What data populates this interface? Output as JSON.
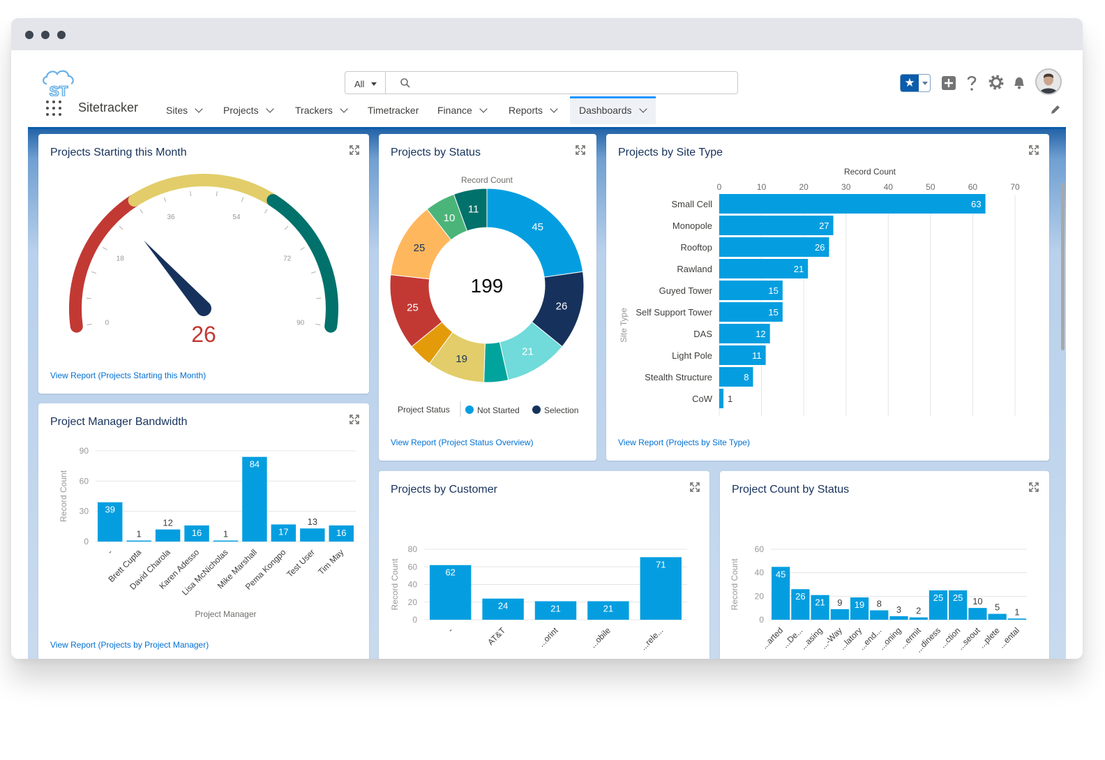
{
  "app": {
    "name": "Sitetracker",
    "logo_text": "ST"
  },
  "search": {
    "scope": "All",
    "placeholder": ""
  },
  "nav": {
    "items": [
      "Sites",
      "Projects",
      "Trackers",
      "Timetracker",
      "Finance",
      "Reports",
      "Dashboards"
    ],
    "has_menu": [
      true,
      true,
      true,
      false,
      true,
      true,
      true
    ],
    "active": "Dashboards"
  },
  "icons": {
    "search": "search-icon",
    "favorites": "star-icon",
    "add": "add-icon",
    "help": "help-icon",
    "settings": "gear-icon",
    "notifications": "bell-icon",
    "apps": "app-launcher-icon",
    "edit": "pencil-icon",
    "expand": "expand-icon"
  },
  "colors": {
    "brand": "#0b5cab",
    "bar": "#049ee0",
    "link": "#0070d2"
  },
  "cards": {
    "gauge": {
      "title": "Projects Starting this Month",
      "link": "View Report (Projects Starting this Month)"
    },
    "status": {
      "title": "Projects by Status",
      "link": "View Report (Project Status Overview)"
    },
    "site_type": {
      "title": "Projects by Site Type",
      "link": "View Report (Projects by Site Type)"
    },
    "bandwidth": {
      "title": "Project Manager Bandwidth",
      "link": "View Report (Projects by Project Manager)"
    },
    "customer": {
      "title": "Projects by Customer"
    },
    "count_status": {
      "title": "Project Count by Status"
    }
  },
  "chart_data": [
    {
      "id": "gauge",
      "type": "gauge",
      "value": 26,
      "min": 0,
      "max": 90,
      "ticks": [
        0,
        18,
        36,
        54,
        72,
        90
      ],
      "bands": [
        {
          "from": 0,
          "to": 30,
          "color": "#c23934"
        },
        {
          "from": 30,
          "to": 60,
          "color": "#e2cd6a"
        },
        {
          "from": 60,
          "to": 90,
          "color": "#00716b"
        }
      ]
    },
    {
      "id": "status",
      "type": "pie",
      "donut": true,
      "center_label": "199",
      "ylabel": "Record Count",
      "legend_title": "Project Status",
      "legend": [
        {
          "name": "Not Started",
          "color": "#049ee0"
        },
        {
          "name": "Selection",
          "color": "#16325c"
        }
      ],
      "slices": [
        {
          "value": 45,
          "color": "#049ee0",
          "label": "45"
        },
        {
          "value": 26,
          "color": "#16325c",
          "label": "26"
        },
        {
          "value": 21,
          "color": "#70dbda",
          "label": "21"
        },
        {
          "value": 8,
          "color": "#00a49c",
          "label": ""
        },
        {
          "value": 19,
          "color": "#e2cd6a",
          "label": "19"
        },
        {
          "value": 8,
          "color": "#e39b0a",
          "label": ""
        },
        {
          "value": 25,
          "color": "#c23934",
          "label": "25"
        },
        {
          "value": 25,
          "color": "#ffb75d",
          "label": "25"
        },
        {
          "value": 10,
          "color": "#4bb579",
          "label": "10"
        },
        {
          "value": 11,
          "color": "#00716b",
          "label": "11"
        }
      ]
    },
    {
      "id": "site_type",
      "type": "bar",
      "orientation": "horizontal",
      "xlabel": "Record Count",
      "ylabel": "Site Type",
      "categories": [
        "Small Cell",
        "Monopole",
        "Rooftop",
        "Rawland",
        "Guyed Tower",
        "Self Support Tower",
        "DAS",
        "Light Pole",
        "Stealth Structure",
        "CoW"
      ],
      "values": [
        63,
        27,
        26,
        21,
        15,
        15,
        12,
        11,
        8,
        1
      ],
      "xlim": [
        0,
        70
      ],
      "ticks": [
        0,
        10,
        20,
        30,
        40,
        50,
        60,
        70
      ]
    },
    {
      "id": "bandwidth",
      "type": "bar",
      "xlabel": "Project Manager",
      "ylabel": "Record Count",
      "categories": [
        "-",
        "Brett Cupta",
        "David Charola",
        "Karen Adesso",
        "Lisa McNicholas",
        "Mike Marshall",
        "Pema Kongpo",
        "Test User",
        "Tim May"
      ],
      "values": [
        39,
        1,
        12,
        16,
        1,
        84,
        17,
        13,
        16
      ],
      "ylim": [
        0,
        90
      ],
      "ticks": [
        0,
        30,
        60,
        90
      ]
    },
    {
      "id": "customer",
      "type": "bar",
      "xlabel": "",
      "ylabel": "Record Count",
      "categories": [
        "-",
        "AT&T",
        "...orint",
        "...obile",
        "...rele..."
      ],
      "values": [
        62,
        24,
        21,
        21,
        71
      ],
      "ylim": [
        0,
        80
      ],
      "ticks": [
        0,
        20,
        40,
        60,
        80
      ]
    },
    {
      "id": "count_status",
      "type": "bar",
      "xlabel": "",
      "ylabel": "Record Count",
      "categories": [
        "...arted",
        "...De...",
        "...asing",
        "...-Way",
        "...latory",
        "...end...",
        "...oning",
        "...ermit",
        "...diness",
        "...ction",
        "...seout",
        "...plete",
        "...ental"
      ],
      "values": [
        45,
        26,
        21,
        9,
        19,
        8,
        3,
        2,
        25,
        25,
        10,
        5,
        1
      ],
      "ylim": [
        0,
        60
      ],
      "ticks": [
        0,
        20,
        40,
        60
      ]
    }
  ]
}
